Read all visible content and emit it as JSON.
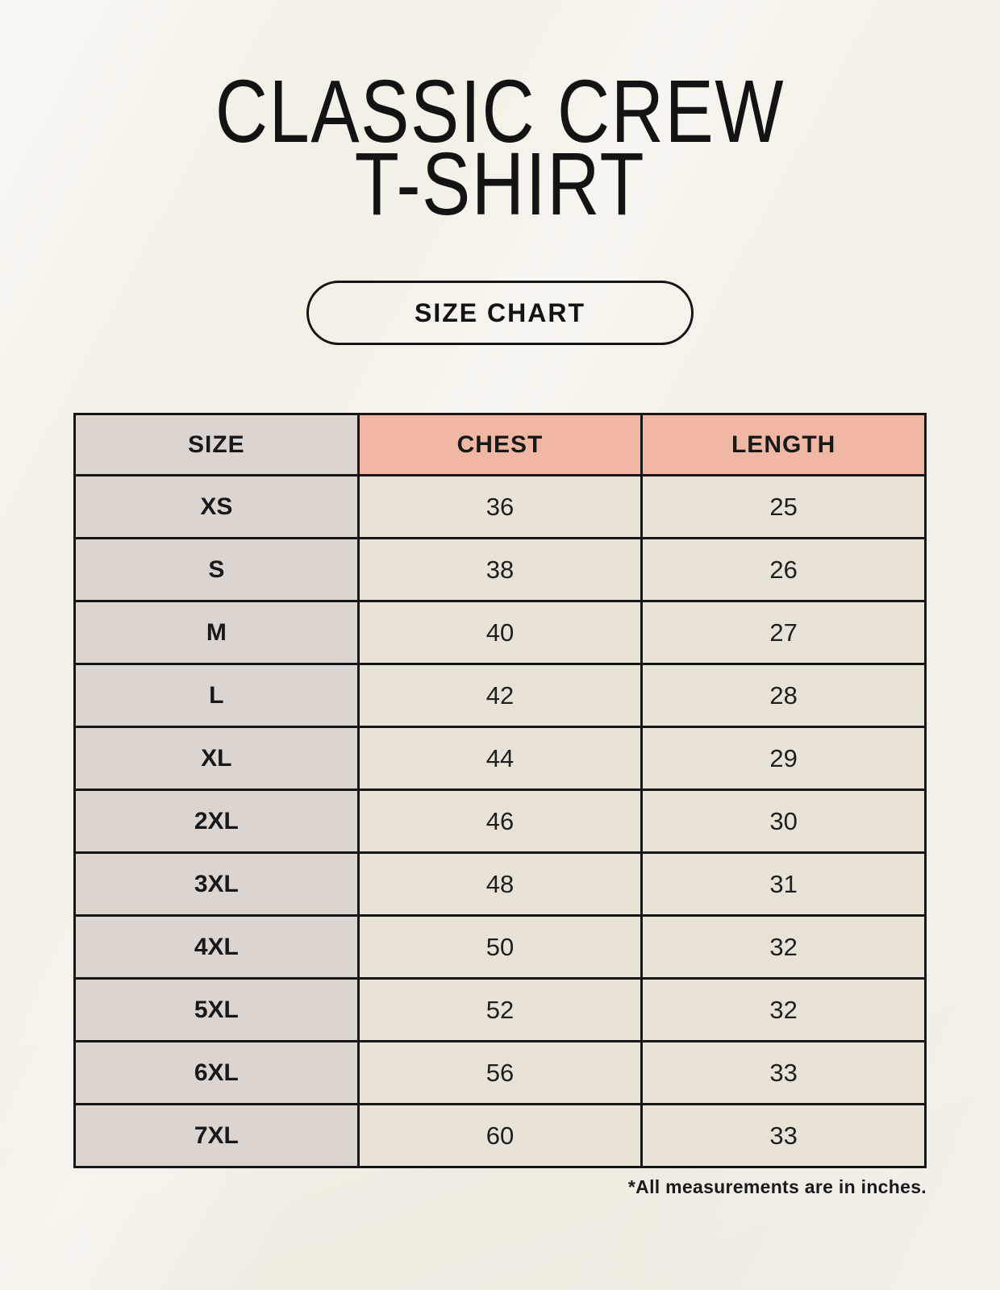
{
  "title": {
    "line1": "CLASSIC CREW",
    "line2": "T-SHIRT"
  },
  "size_chart_button": {
    "label": "SIZE CHART"
  },
  "footnote": "*All measurements are in inches.",
  "colors": {
    "page_background": "#f3f0e7",
    "size_column_fill": "#dbd4cf",
    "header_accent_fill": "#f0b8a4",
    "value_cell_fill": "#e9e2d7",
    "table_border": "#161616",
    "text": "#131313"
  },
  "chart_data": {
    "type": "table",
    "title": "CLASSIC CREW T-SHIRT",
    "columns": [
      "SIZE",
      "CHEST",
      "LENGTH"
    ],
    "rows": [
      [
        "XS",
        "36",
        "25"
      ],
      [
        "S",
        "38",
        "26"
      ],
      [
        "M",
        "40",
        "27"
      ],
      [
        "L",
        "42",
        "28"
      ],
      [
        "XL",
        "44",
        "29"
      ],
      [
        "2XL",
        "46",
        "30"
      ],
      [
        "3XL",
        "48",
        "31"
      ],
      [
        "4XL",
        "50",
        "32"
      ],
      [
        "5XL",
        "52",
        "32"
      ],
      [
        "6XL",
        "56",
        "33"
      ],
      [
        "7XL",
        "60",
        "33"
      ]
    ],
    "units_note": "*All measurements are in inches."
  }
}
